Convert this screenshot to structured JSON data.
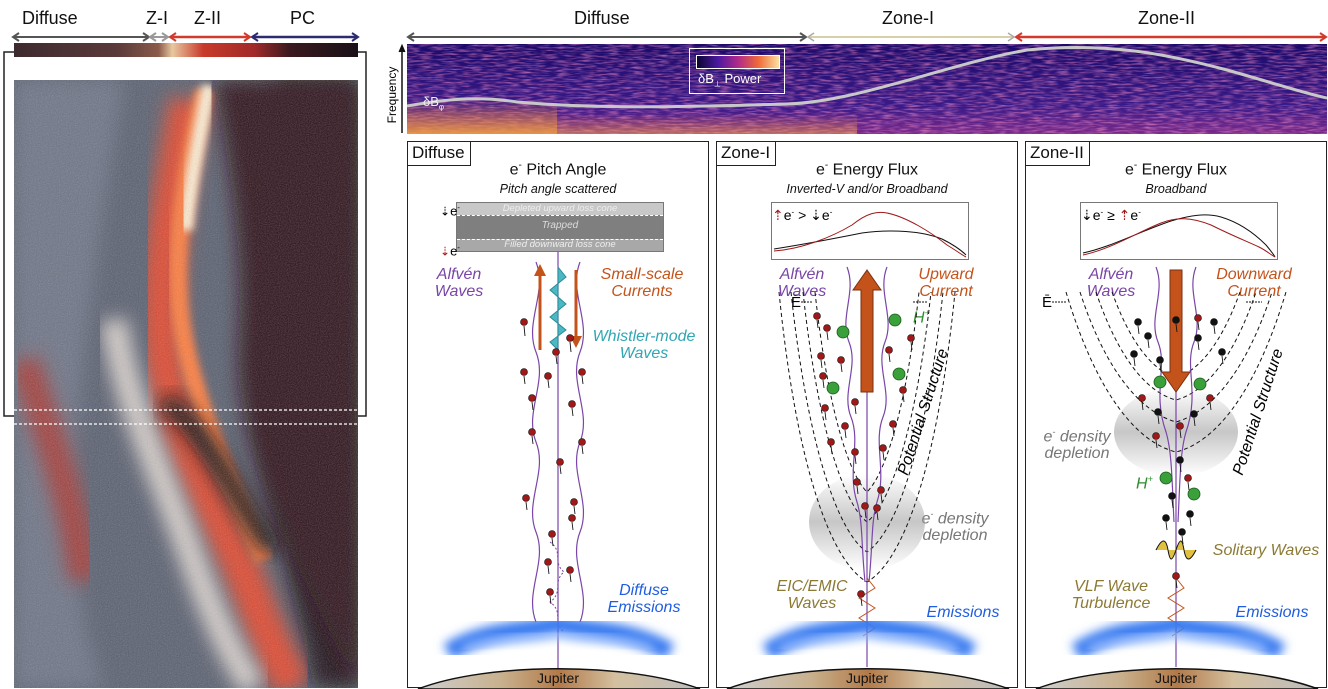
{
  "left_panel": {
    "regions": [
      "Diffuse",
      "Z-I",
      "Z-II",
      "PC"
    ]
  },
  "top_strip": {
    "regions": [
      "Diffuse",
      "Zone-I",
      "Zone-II"
    ],
    "y_axis_label": "Frequency",
    "series_label": "δB",
    "series_sub": "φ",
    "legend_label": "δB",
    "legend_sub": "⊥",
    "legend_suffix": "Power"
  },
  "panels": [
    {
      "tag": "Diffuse",
      "title_pre": "e",
      "title_sup": "-",
      "title_post": "Pitch Angle",
      "subtitle": "Pitch angle scattered",
      "inset": {
        "label_top": "e",
        "label_top_sup": "-",
        "label_bottom": "e",
        "label_bottom_sup": "-",
        "band_upper": "Depleted upward loss cone",
        "band_middle": "Trapped",
        "band_lower": "Filled downward loss cone"
      },
      "alfven": "Alfvén\nWaves",
      "current": "Small-scale\nCurrents",
      "whistler": "Whistler-mode\nWaves",
      "emissions": "Diffuse\nEmissions",
      "planet": "Jupiter"
    },
    {
      "tag": "Zone-I",
      "title_pre": "e",
      "title_sup": "-",
      "title_post": "Energy Flux",
      "subtitle": "Inverted-V and/or Broadband",
      "inset_relation": ">",
      "alfven": "Alfvén\nWaves",
      "current": "Upward\nCurrent",
      "efield": "Ē",
      "ion": "H",
      "ion_sup": "+",
      "structure": "Potential Structure",
      "depletion_pre": "e",
      "depletion_sup": "-",
      "depletion_post": " density\ndepletion",
      "waves": "EIC/EMIC\nWaves",
      "emissions": "Emissions",
      "planet": "Jupiter"
    },
    {
      "tag": "Zone-II",
      "title_pre": "e",
      "title_sup": "-",
      "title_post": "Energy Flux",
      "subtitle": "Broadband",
      "inset_relation": "≥",
      "alfven": "Alfvén\nWaves",
      "current": "Downward\nCurrent",
      "efield": "Ē",
      "ion": "H",
      "ion_sup": "+",
      "structure": "Potential Structure",
      "depletion_pre": "e",
      "depletion_sup": "-",
      "depletion_post": " density\ndepletion",
      "solitary": "Solitary Waves",
      "waves": "VLF Wave\nTurbulence",
      "emissions": "Emissions",
      "planet": "Jupiter"
    }
  ],
  "colors": {
    "red_electron": "#a01818",
    "black_electron": "#111111",
    "alfven": "#7a45a8",
    "current": "#c4531b",
    "whistler": "#2fa7b4",
    "emission": "#1f5ee0",
    "ion": "#2e8b2e",
    "olive": "#8c7a34"
  }
}
